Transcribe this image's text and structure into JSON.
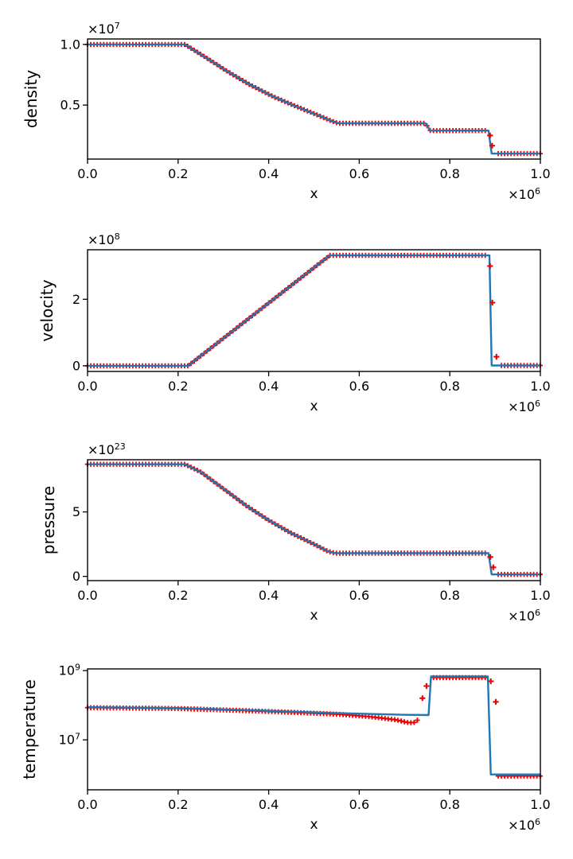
{
  "figure": {
    "title": "",
    "background": "#ffffff",
    "line_color": "#1f77b4",
    "marker_color": "#ee0000",
    "marker_symbol": "plus",
    "marker_step": 0.00714
  },
  "chart_data": {
    "type": "line",
    "xlabel": "x",
    "x_offset_prefix": "×10",
    "x_offset_exp": "6",
    "xlim": [
      0.0,
      1.0
    ],
    "xticks": [
      {
        "v": 0.0,
        "label": "0.0"
      },
      {
        "v": 0.2,
        "label": "0.2"
      },
      {
        "v": 0.4,
        "label": "0.4"
      },
      {
        "v": 0.6,
        "label": "0.6"
      },
      {
        "v": 0.8,
        "label": "0.8"
      },
      {
        "v": 1.0,
        "label": "1.0"
      }
    ],
    "charts": [
      {
        "ylabel": "density",
        "yscale": "linear",
        "ylim": [
          0.055,
          1.045
        ],
        "y_offset_prefix": "×10",
        "y_offset_exp": "7",
        "yticks": [
          {
            "v": 0.5,
            "label": "0.5"
          },
          {
            "v": 1.0,
            "label": "1.0"
          }
        ],
        "line": [
          [
            0,
            1.0
          ],
          [
            0.215,
            1.0
          ],
          [
            0.26,
            0.895
          ],
          [
            0.31,
            0.775
          ],
          [
            0.36,
            0.665
          ],
          [
            0.41,
            0.57
          ],
          [
            0.46,
            0.49
          ],
          [
            0.51,
            0.415
          ],
          [
            0.535,
            0.375
          ],
          [
            0.553,
            0.35
          ],
          [
            0.746,
            0.35
          ],
          [
            0.757,
            0.29
          ],
          [
            0.8855,
            0.29
          ],
          [
            0.8925,
            0.1
          ],
          [
            1.0,
            0.1
          ]
        ],
        "marker_segments": [
          [
            [
              0,
              1.0
            ],
            [
              0.215,
              1.0
            ],
            [
              0.26,
              0.895
            ],
            [
              0.31,
              0.775
            ],
            [
              0.36,
              0.665
            ],
            [
              0.41,
              0.57
            ],
            [
              0.46,
              0.49
            ],
            [
              0.51,
              0.415
            ],
            [
              0.535,
              0.375
            ],
            [
              0.553,
              0.35
            ],
            [
              0.746,
              0.35
            ],
            [
              0.757,
              0.29
            ],
            [
              0.884,
              0.29
            ]
          ],
          [
            [
              0.9,
              0.1
            ],
            [
              1.0,
              0.1
            ]
          ]
        ],
        "extra_markers": [
          [
            0.889,
            0.25
          ],
          [
            0.8935,
            0.165
          ]
        ]
      },
      {
        "ylabel": "velocity",
        "yscale": "linear",
        "ylim": [
          -0.17,
          3.49
        ],
        "y_offset_prefix": "×10",
        "y_offset_exp": "8",
        "yticks": [
          {
            "v": 0.0,
            "label": "0"
          },
          {
            "v": 2.0,
            "label": "2"
          }
        ],
        "line": [
          [
            0,
            0.0
          ],
          [
            0.222,
            0.0
          ],
          [
            0.535,
            3.32
          ],
          [
            0.8875,
            3.32
          ],
          [
            0.8925,
            0.01
          ],
          [
            1.0,
            0.01
          ]
        ],
        "marker_segments": [
          [
            [
              0,
              0.0
            ],
            [
              0.222,
              0.0
            ],
            [
              0.535,
              3.32
            ],
            [
              0.879,
              3.32
            ]
          ],
          [
            [
              0.91,
              0.01
            ],
            [
              1.0,
              0.01
            ]
          ]
        ],
        "extra_markers": [
          [
            0.889,
            3.0
          ],
          [
            0.894,
            1.9
          ],
          [
            0.903,
            0.27
          ]
        ]
      },
      {
        "ylabel": "pressure",
        "yscale": "linear",
        "ylim": [
          -0.33,
          9.05
        ],
        "y_offset_prefix": "×10",
        "y_offset_exp": "23",
        "yticks": [
          {
            "v": 0.0,
            "label": "0"
          },
          {
            "v": 5.0,
            "label": "5"
          }
        ],
        "line": [
          [
            0,
            8.7
          ],
          [
            0.215,
            8.7
          ],
          [
            0.25,
            8.1
          ],
          [
            0.3,
            6.8
          ],
          [
            0.35,
            5.5
          ],
          [
            0.4,
            4.35
          ],
          [
            0.45,
            3.35
          ],
          [
            0.5,
            2.5
          ],
          [
            0.53,
            1.95
          ],
          [
            0.547,
            1.8
          ],
          [
            0.8855,
            1.8
          ],
          [
            0.8925,
            0.15
          ],
          [
            1.0,
            0.15
          ]
        ],
        "marker_segments": [
          [
            [
              0,
              8.7
            ],
            [
              0.215,
              8.7
            ],
            [
              0.25,
              8.1
            ],
            [
              0.3,
              6.8
            ],
            [
              0.35,
              5.5
            ],
            [
              0.4,
              4.35
            ],
            [
              0.45,
              3.35
            ],
            [
              0.5,
              2.5
            ],
            [
              0.53,
              1.95
            ],
            [
              0.547,
              1.8
            ],
            [
              0.884,
              1.8
            ]
          ],
          [
            [
              0.9,
              0.15
            ],
            [
              1.0,
              0.15
            ]
          ]
        ],
        "extra_markers": [
          [
            0.8895,
            1.5
          ],
          [
            0.896,
            0.7
          ]
        ]
      },
      {
        "ylabel": "temperature",
        "yscale": "log",
        "ylim": [
          360000,
          1120000000
        ],
        "yticks": [
          {
            "v": 10000000,
            "label": "10",
            "exp": "7"
          },
          {
            "v": 1000000000,
            "label": "10",
            "exp": "9"
          }
        ],
        "line": [
          [
            0,
            88000000
          ],
          [
            0.2,
            83000000
          ],
          [
            0.4,
            69000000
          ],
          [
            0.55,
            59000000
          ],
          [
            0.7,
            53000000
          ],
          [
            0.753,
            52000000
          ],
          [
            0.7585,
            680000000
          ],
          [
            0.884,
            680000000
          ],
          [
            0.8905,
            1000000
          ],
          [
            1.0,
            1000000
          ]
        ],
        "marker_segments": [
          [
            [
              0,
              85000000
            ],
            [
              0.2,
              80000000
            ],
            [
              0.4,
              66000000
            ],
            [
              0.55,
              55000000
            ],
            [
              0.62,
              47000000
            ],
            [
              0.68,
              38000000
            ],
            [
              0.705,
              32000000
            ],
            [
              0.72,
              31000000
            ],
            [
              0.734,
              41000000
            ]
          ],
          [
            [
              0.7585,
              630000000
            ],
            [
              0.884,
              630000000
            ]
          ],
          [
            [
              0.906,
              900000
            ],
            [
              1.0,
              900000
            ]
          ]
        ],
        "extra_markers": [
          [
            0.7395,
            160000000
          ],
          [
            0.7485,
            360000000
          ],
          [
            0.8905,
            490000000
          ],
          [
            0.9015,
            125000000
          ]
        ]
      }
    ]
  }
}
